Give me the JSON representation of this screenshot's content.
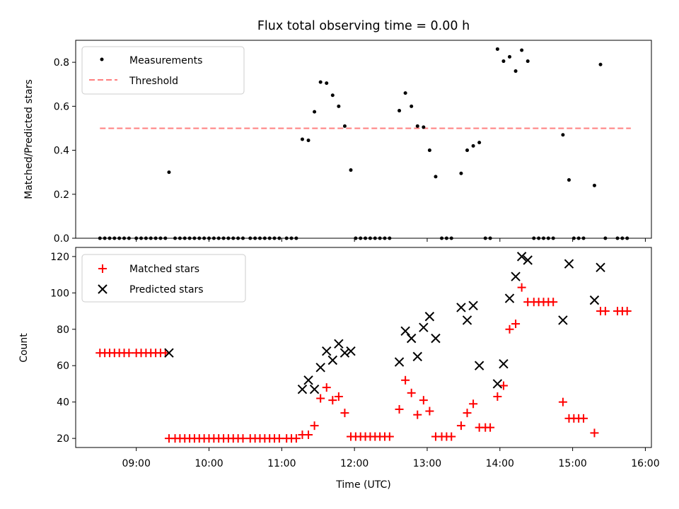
{
  "title": "Flux total observing time = 0.00 h",
  "chart_data": [
    {
      "type": "scatter",
      "panel": "top",
      "ylabel": "Matched/Predicted stars",
      "xlim": [
        "08:10",
        "16:05"
      ],
      "ylim": [
        0,
        0.9
      ],
      "y_ticks": [
        "0.0",
        "0.2",
        "0.4",
        "0.6",
        "0.8"
      ],
      "legend": {
        "placement": "top-left",
        "entries": [
          {
            "label": "Measurements",
            "marker": "dot",
            "color": "#000000"
          },
          {
            "label": "Threshold",
            "marker": "dashed-line",
            "color": "#ff7f7f"
          }
        ]
      },
      "threshold": {
        "value": 0.5,
        "x_start": "08:30",
        "x_end": "15:48",
        "color": "#ff7f7f"
      },
      "series": [
        {
          "name": "Measurements",
          "color": "#000000",
          "points": [
            [
              "08:30",
              0
            ],
            [
              "08:34",
              0
            ],
            [
              "08:38",
              0
            ],
            [
              "08:42",
              0
            ],
            [
              "08:46",
              0
            ],
            [
              "08:50",
              0
            ],
            [
              "08:54",
              0
            ],
            [
              "09:00",
              0
            ],
            [
              "09:04",
              0
            ],
            [
              "09:08",
              0
            ],
            [
              "09:12",
              0
            ],
            [
              "09:16",
              0
            ],
            [
              "09:20",
              0
            ],
            [
              "09:24",
              0
            ],
            [
              "09:27",
              0.3
            ],
            [
              "09:32",
              0
            ],
            [
              "09:36",
              0
            ],
            [
              "09:40",
              0
            ],
            [
              "09:44",
              0
            ],
            [
              "09:48",
              0
            ],
            [
              "09:52",
              0
            ],
            [
              "09:56",
              0
            ],
            [
              "10:00",
              0
            ],
            [
              "10:04",
              0
            ],
            [
              "10:08",
              0
            ],
            [
              "10:12",
              0
            ],
            [
              "10:16",
              0
            ],
            [
              "10:20",
              0
            ],
            [
              "10:24",
              0
            ],
            [
              "10:28",
              0
            ],
            [
              "10:34",
              0
            ],
            [
              "10:38",
              0
            ],
            [
              "10:42",
              0
            ],
            [
              "10:46",
              0
            ],
            [
              "10:50",
              0
            ],
            [
              "10:54",
              0
            ],
            [
              "10:58",
              0
            ],
            [
              "11:04",
              0
            ],
            [
              "11:08",
              0
            ],
            [
              "11:12",
              0
            ],
            [
              "11:17",
              0.45
            ],
            [
              "11:22",
              0.445
            ],
            [
              "11:27",
              0.575
            ],
            [
              "11:32",
              0.71
            ],
            [
              "11:37",
              0.705
            ],
            [
              "11:42",
              0.65
            ],
            [
              "11:47",
              0.6
            ],
            [
              "11:52",
              0.51
            ],
            [
              "11:57",
              0.31
            ],
            [
              "12:01",
              0
            ],
            [
              "12:05",
              0
            ],
            [
              "12:09",
              0
            ],
            [
              "12:13",
              0
            ],
            [
              "12:17",
              0
            ],
            [
              "12:21",
              0
            ],
            [
              "12:25",
              0
            ],
            [
              "12:29",
              0
            ],
            [
              "12:37",
              0.58
            ],
            [
              "12:42",
              0.66
            ],
            [
              "12:47",
              0.6
            ],
            [
              "12:52",
              0.51
            ],
            [
              "12:57",
              0.505
            ],
            [
              "13:02",
              0.4
            ],
            [
              "13:07",
              0.28
            ],
            [
              "13:12",
              0
            ],
            [
              "13:16",
              0
            ],
            [
              "13:20",
              0
            ],
            [
              "13:28",
              0.295
            ],
            [
              "13:33",
              0.4
            ],
            [
              "13:38",
              0.42
            ],
            [
              "13:43",
              0.435
            ],
            [
              "13:48",
              0
            ],
            [
              "13:52",
              0
            ],
            [
              "13:58",
              0.86
            ],
            [
              "14:03",
              0.805
            ],
            [
              "14:08",
              0.825
            ],
            [
              "14:13",
              0.76
            ],
            [
              "14:18",
              0.855
            ],
            [
              "14:23",
              0.805
            ],
            [
              "14:28",
              0
            ],
            [
              "14:32",
              0
            ],
            [
              "14:36",
              0
            ],
            [
              "14:40",
              0
            ],
            [
              "14:44",
              0
            ],
            [
              "14:52",
              0.47
            ],
            [
              "14:57",
              0.265
            ],
            [
              "15:01",
              0
            ],
            [
              "15:05",
              0
            ],
            [
              "15:09",
              0
            ],
            [
              "15:18",
              0.24
            ],
            [
              "15:23",
              0.79
            ],
            [
              "15:27",
              0
            ],
            [
              "15:37",
              0
            ],
            [
              "15:41",
              0
            ],
            [
              "15:45",
              0
            ]
          ]
        }
      ]
    },
    {
      "type": "scatter",
      "panel": "bottom",
      "xlabel": "Time (UTC)",
      "ylabel": "Count",
      "xlim": [
        "08:10",
        "16:05"
      ],
      "ylim": [
        15,
        125
      ],
      "x_ticks": [
        "09:00",
        "10:00",
        "11:00",
        "12:00",
        "13:00",
        "14:00",
        "15:00",
        "16:00"
      ],
      "y_ticks": [
        "20",
        "40",
        "60",
        "80",
        "100",
        "120"
      ],
      "legend": {
        "placement": "top-left",
        "entries": [
          {
            "label": "Matched stars",
            "marker": "plus",
            "color": "#ff0000"
          },
          {
            "label": "Predicted stars",
            "marker": "x",
            "color": "#000000"
          }
        ]
      },
      "series": [
        {
          "name": "Matched stars",
          "marker": "plus",
          "color": "#ff0000",
          "points": [
            [
              "08:30",
              67
            ],
            [
              "08:34",
              67
            ],
            [
              "08:38",
              67
            ],
            [
              "08:42",
              67
            ],
            [
              "08:46",
              67
            ],
            [
              "08:50",
              67
            ],
            [
              "08:54",
              67
            ],
            [
              "09:00",
              67
            ],
            [
              "09:04",
              67
            ],
            [
              "09:08",
              67
            ],
            [
              "09:12",
              67
            ],
            [
              "09:16",
              67
            ],
            [
              "09:20",
              67
            ],
            [
              "09:24",
              67
            ],
            [
              "09:27",
              20
            ],
            [
              "09:32",
              20
            ],
            [
              "09:36",
              20
            ],
            [
              "09:40",
              20
            ],
            [
              "09:44",
              20
            ],
            [
              "09:48",
              20
            ],
            [
              "09:52",
              20
            ],
            [
              "09:56",
              20
            ],
            [
              "10:00",
              20
            ],
            [
              "10:04",
              20
            ],
            [
              "10:08",
              20
            ],
            [
              "10:12",
              20
            ],
            [
              "10:16",
              20
            ],
            [
              "10:20",
              20
            ],
            [
              "10:24",
              20
            ],
            [
              "10:28",
              20
            ],
            [
              "10:34",
              20
            ],
            [
              "10:38",
              20
            ],
            [
              "10:42",
              20
            ],
            [
              "10:46",
              20
            ],
            [
              "10:50",
              20
            ],
            [
              "10:54",
              20
            ],
            [
              "10:58",
              20
            ],
            [
              "11:04",
              20
            ],
            [
              "11:08",
              20
            ],
            [
              "11:12",
              20
            ],
            [
              "11:17",
              22
            ],
            [
              "11:22",
              22
            ],
            [
              "11:27",
              27
            ],
            [
              "11:32",
              42
            ],
            [
              "11:37",
              48
            ],
            [
              "11:42",
              41
            ],
            [
              "11:47",
              43
            ],
            [
              "11:52",
              34
            ],
            [
              "11:57",
              21
            ],
            [
              "12:01",
              21
            ],
            [
              "12:05",
              21
            ],
            [
              "12:09",
              21
            ],
            [
              "12:13",
              21
            ],
            [
              "12:17",
              21
            ],
            [
              "12:21",
              21
            ],
            [
              "12:25",
              21
            ],
            [
              "12:29",
              21
            ],
            [
              "12:37",
              36
            ],
            [
              "12:42",
              52
            ],
            [
              "12:47",
              45
            ],
            [
              "12:52",
              33
            ],
            [
              "12:57",
              41
            ],
            [
              "13:02",
              35
            ],
            [
              "13:07",
              21
            ],
            [
              "13:12",
              21
            ],
            [
              "13:16",
              21
            ],
            [
              "13:20",
              21
            ],
            [
              "13:28",
              27
            ],
            [
              "13:33",
              34
            ],
            [
              "13:38",
              39
            ],
            [
              "13:43",
              26
            ],
            [
              "13:48",
              26
            ],
            [
              "13:52",
              26
            ],
            [
              "13:58",
              43
            ],
            [
              "14:03",
              49
            ],
            [
              "14:08",
              80
            ],
            [
              "14:13",
              83
            ],
            [
              "14:18",
              103
            ],
            [
              "14:23",
              95
            ],
            [
              "14:28",
              95
            ],
            [
              "14:32",
              95
            ],
            [
              "14:36",
              95
            ],
            [
              "14:40",
              95
            ],
            [
              "14:44",
              95
            ],
            [
              "14:52",
              40
            ],
            [
              "14:57",
              31
            ],
            [
              "15:01",
              31
            ],
            [
              "15:05",
              31
            ],
            [
              "15:09",
              31
            ],
            [
              "15:18",
              23
            ],
            [
              "15:23",
              90
            ],
            [
              "15:27",
              90
            ],
            [
              "15:37",
              90
            ],
            [
              "15:41",
              90
            ],
            [
              "15:45",
              90
            ]
          ]
        },
        {
          "name": "Predicted stars",
          "marker": "x",
          "color": "#000000",
          "points": [
            [
              "09:27",
              67
            ],
            [
              "11:17",
              47
            ],
            [
              "11:22",
              52
            ],
            [
              "11:27",
              47
            ],
            [
              "11:32",
              59
            ],
            [
              "11:37",
              68
            ],
            [
              "11:42",
              63
            ],
            [
              "11:47",
              72
            ],
            [
              "11:52",
              67
            ],
            [
              "11:57",
              68
            ],
            [
              "12:37",
              62
            ],
            [
              "12:42",
              79
            ],
            [
              "12:47",
              75
            ],
            [
              "12:52",
              65
            ],
            [
              "12:57",
              81
            ],
            [
              "13:02",
              87
            ],
            [
              "13:07",
              75
            ],
            [
              "13:28",
              92
            ],
            [
              "13:33",
              85
            ],
            [
              "13:38",
              93
            ],
            [
              "13:43",
              60
            ],
            [
              "13:58",
              50
            ],
            [
              "14:03",
              61
            ],
            [
              "14:08",
              97
            ],
            [
              "14:13",
              109
            ],
            [
              "14:18",
              120
            ],
            [
              "14:23",
              118
            ],
            [
              "14:52",
              85
            ],
            [
              "14:57",
              116
            ],
            [
              "15:18",
              96
            ],
            [
              "15:23",
              114
            ]
          ]
        }
      ]
    }
  ]
}
